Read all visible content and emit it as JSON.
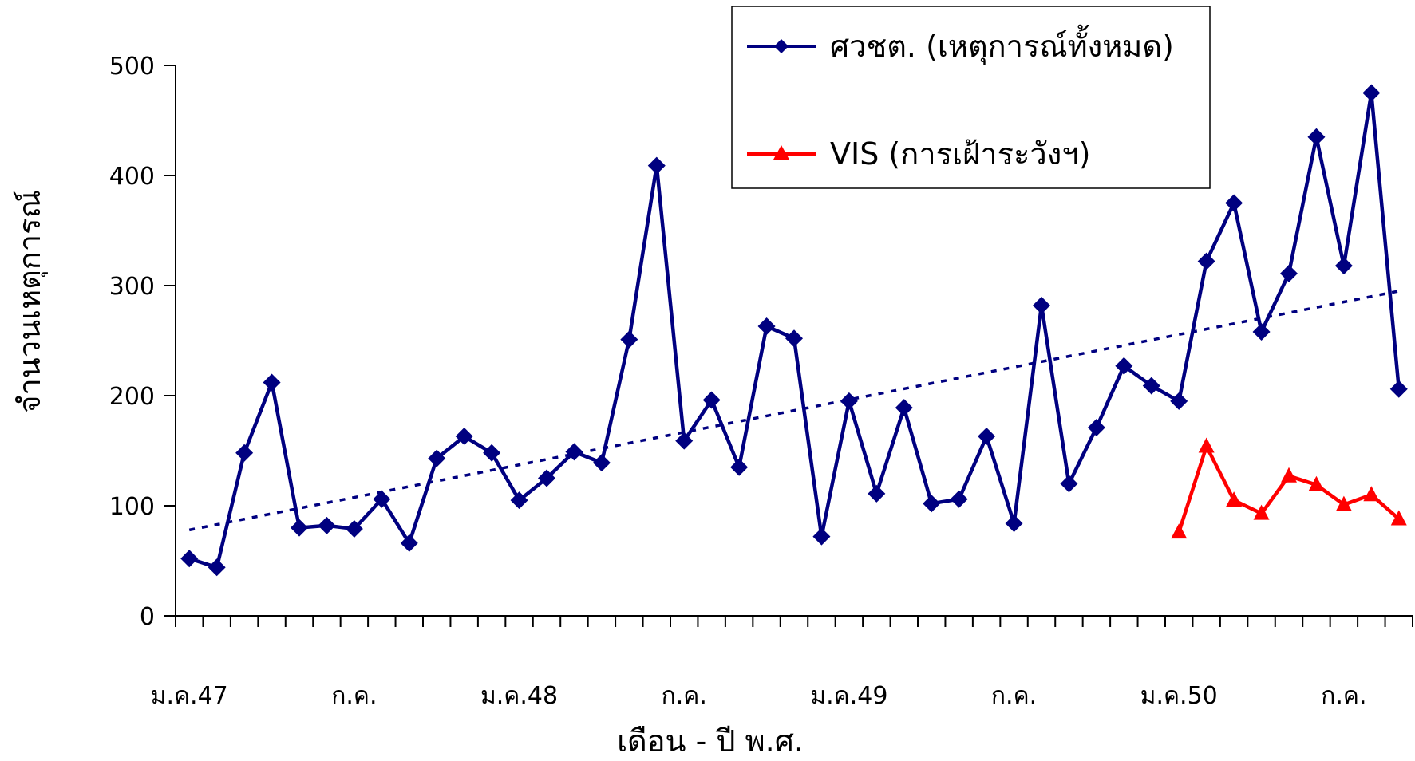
{
  "chart_data": {
    "type": "line",
    "xlabel": "เดือน - ปี พ.ศ.",
    "ylabel": "จำนวนเหตุการณ์",
    "ylim": [
      0,
      500
    ],
    "yticks": [
      0,
      100,
      200,
      300,
      400,
      500
    ],
    "grid": false,
    "legend_position": "top-right",
    "x_tick_labels": [
      {
        "index": 0,
        "label": "ม.ค.47"
      },
      {
        "index": 6,
        "label": "ก.ค."
      },
      {
        "index": 12,
        "label": "ม.ค.48"
      },
      {
        "index": 18,
        "label": "ก.ค."
      },
      {
        "index": 24,
        "label": "ม.ค.49"
      },
      {
        "index": 30,
        "label": "ก.ค."
      },
      {
        "index": 36,
        "label": "ม.ค.50"
      },
      {
        "index": 42,
        "label": "ก.ค."
      }
    ],
    "series": [
      {
        "name": "ศวชต. (เหตุการณ์ทั้งหมด)",
        "color": "#000080",
        "marker": "diamond",
        "start_index": 0,
        "values": [
          52,
          44,
          148,
          212,
          80,
          82,
          79,
          106,
          66,
          143,
          163,
          148,
          105,
          125,
          149,
          139,
          251,
          409,
          159,
          196,
          135,
          263,
          252,
          72,
          195,
          111,
          189,
          102,
          106,
          163,
          84,
          282,
          120,
          171,
          227,
          209,
          195,
          322,
          375,
          258,
          311,
          435,
          318,
          475,
          206
        ]
      },
      {
        "name": "VIS (การเฝ้าระวังฯ)",
        "color": "#ff0000",
        "marker": "triangle",
        "start_index": 36,
        "values": [
          76,
          154,
          105,
          93,
          127,
          119,
          101,
          110,
          88
        ]
      }
    ],
    "trendline": {
      "series": "ศวชต. (เหตุการณ์ทั้งหมด)",
      "type": "linear",
      "style": "dotted",
      "color": "#000080",
      "start_value": 78,
      "end_value": 295
    }
  }
}
